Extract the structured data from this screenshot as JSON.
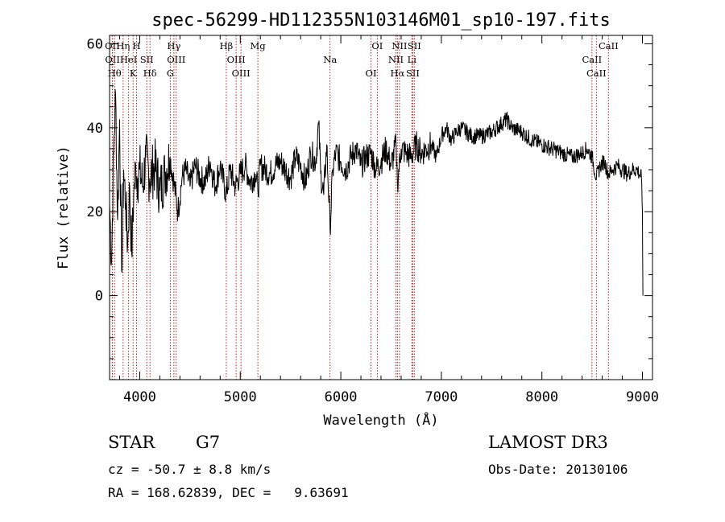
{
  "chart_data": {
    "type": "line",
    "title": "spec-56299-HD112355N103146M01_sp10-197.fits",
    "xlabel": "Wavelength (Å)",
    "ylabel": "Flux (relative)",
    "xlim": [
      3700,
      9100
    ],
    "ylim": [
      -20,
      62
    ],
    "xticks": [
      4000,
      5000,
      6000,
      7000,
      8000,
      9000
    ],
    "yticks": [
      0,
      20,
      40,
      60
    ],
    "series": [
      {
        "name": "flux",
        "x": [
          3700,
          3720,
          3740,
          3760,
          3780,
          3800,
          3820,
          3840,
          3860,
          3880,
          3900,
          3920,
          3940,
          3960,
          3980,
          4000,
          4030,
          4060,
          4100,
          4150,
          4200,
          4250,
          4300,
          4340,
          4380,
          4420,
          4460,
          4500,
          4550,
          4600,
          4650,
          4700,
          4750,
          4800,
          4861,
          4900,
          4950,
          5000,
          5050,
          5100,
          5150,
          5175,
          5200,
          5250,
          5300,
          5350,
          5400,
          5450,
          5500,
          5550,
          5600,
          5650,
          5700,
          5750,
          5780,
          5800,
          5830,
          5860,
          5893,
          5920,
          5950,
          6000,
          6050,
          6100,
          6150,
          6200,
          6250,
          6300,
          6350,
          6400,
          6450,
          6500,
          6550,
          6563,
          6600,
          6650,
          6700,
          6750,
          6800,
          6850,
          6900,
          6950,
          7000,
          7050,
          7100,
          7150,
          7200,
          7300,
          7400,
          7500,
          7600,
          7650,
          7700,
          7800,
          7900,
          8000,
          8100,
          8200,
          8300,
          8400,
          8450,
          8500,
          8542,
          8580,
          8620,
          8662,
          8700,
          8750,
          8800,
          8850,
          8900,
          8950,
          8990,
          9000,
          9005
        ],
        "values": [
          22,
          8,
          34,
          48,
          18,
          42,
          6,
          30,
          22,
          12,
          26,
          10,
          24,
          31,
          28,
          30,
          26,
          33,
          28,
          31,
          25,
          29,
          33,
          27,
          20,
          28,
          30,
          26,
          31,
          28,
          27,
          32,
          26,
          31,
          24,
          30,
          26,
          29,
          31,
          27,
          29,
          25,
          31,
          30,
          29,
          31,
          32,
          30,
          28,
          33,
          31,
          27,
          34,
          32,
          41,
          29,
          24,
          36,
          16,
          30,
          34,
          32,
          30,
          33,
          35,
          31,
          33,
          34,
          30,
          32,
          35,
          31,
          36,
          27,
          35,
          34,
          33,
          36,
          34,
          35,
          36,
          33,
          38,
          40,
          37,
          39,
          40,
          38,
          38,
          39,
          41,
          42,
          40,
          39,
          37,
          36,
          35,
          34,
          33,
          34,
          35,
          33,
          28,
          31,
          32,
          29,
          30,
          31,
          30,
          29,
          30,
          30,
          28,
          20,
          0
        ]
      }
    ],
    "lines": [
      {
        "label": "OII",
        "x": 3727
      },
      {
        "label": "OII",
        "x": 3729
      },
      {
        "label": "Hθ",
        "x": 3750
      },
      {
        "label": "Hη",
        "x": 3835
      },
      {
        "label": "HeI",
        "x": 3889
      },
      {
        "label": "K",
        "x": 3934
      },
      {
        "label": "H",
        "x": 3969
      },
      {
        "label": "SII",
        "x": 4070
      },
      {
        "label": "Hδ",
        "x": 4102
      },
      {
        "label": "Hγ",
        "x": 4340
      },
      {
        "label": "OIII",
        "x": 4363
      },
      {
        "label": "G",
        "x": 4305
      },
      {
        "label": "Hβ",
        "x": 4861
      },
      {
        "label": "OIII",
        "x": 4959
      },
      {
        "label": "OIII",
        "x": 5007
      },
      {
        "label": "Mg",
        "x": 5175
      },
      {
        "label": "Na",
        "x": 5893
      },
      {
        "label": "OI",
        "x": 6300
      },
      {
        "label": "OI",
        "x": 6363
      },
      {
        "label": "NII",
        "x": 6548
      },
      {
        "label": "Hα",
        "x": 6563
      },
      {
        "label": "NII",
        "x": 6583
      },
      {
        "label": "Li",
        "x": 6707
      },
      {
        "label": "SII",
        "x": 6716
      },
      {
        "label": "SII",
        "x": 6731
      },
      {
        "label": "CaII",
        "x": 8498
      },
      {
        "label": "CaII",
        "x": 8542
      },
      {
        "label": "CaII",
        "x": 8662
      }
    ],
    "line_color": "#b22222",
    "plot_color": "#000000"
  },
  "info": {
    "object_class": "STAR",
    "subclass": "G7",
    "redshift": "cz = -50.7 ± 8.8 km/s",
    "coords": "RA = 168.62839, DEC =   9.63691",
    "survey": "LAMOST DR3",
    "obs_date": "Obs-Date: 20130106"
  }
}
